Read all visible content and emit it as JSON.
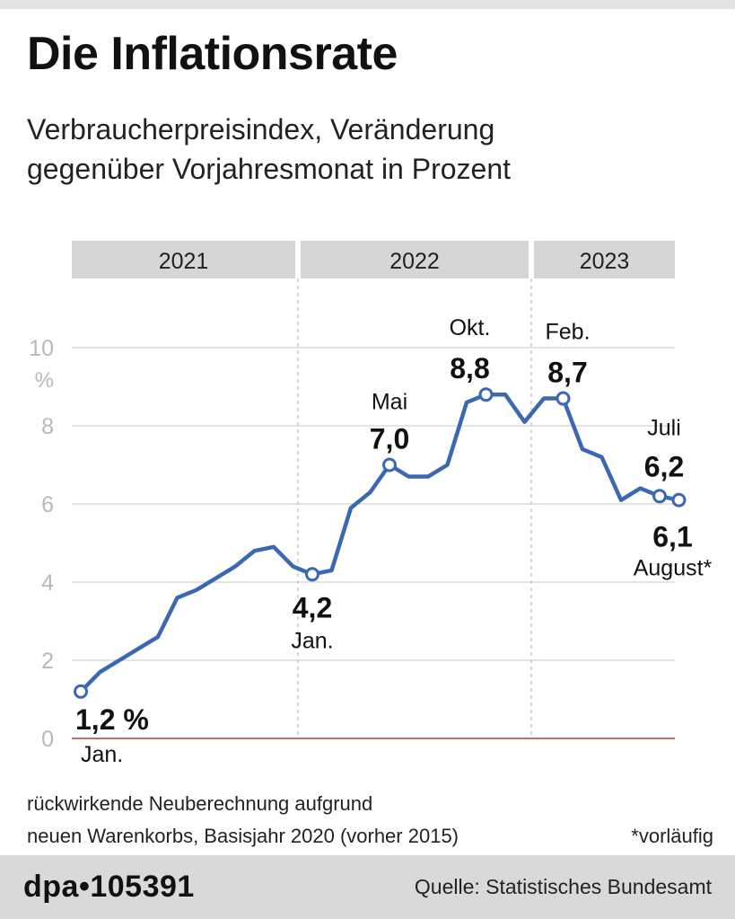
{
  "title": "Die Inflationsrate",
  "subtitle": [
    "Verbraucherpreisindex, Veränderung",
    "gegenüber Vorjahresmonat in Prozent"
  ],
  "footnote": [
    "rückwirkende Neuberechnung aufgrund",
    "neuen Warenkorbs, Basisjahr 2020 (vorher 2015)"
  ],
  "preliminary_note": "*vorläufig",
  "footer": {
    "logo": "dpa•105391",
    "source": "Quelle: Statistisches Bundesamt"
  },
  "colors": {
    "line": "#3c68b3",
    "grid": "#c8c8c8",
    "zero_line": "#b04040",
    "year_band": "#d6d6d6",
    "axis_text": "#b8b8b8",
    "label_text": "#111111"
  },
  "chart_data": {
    "type": "line",
    "title": "Die Inflationsrate",
    "subtitle": "Verbraucherpreisindex, Veränderung gegenüber Vorjahresmonat in Prozent",
    "ylabel": "%",
    "ylim": [
      0,
      10
    ],
    "yticks": [
      0,
      2,
      4,
      6,
      8,
      10
    ],
    "years": [
      "2021",
      "2022",
      "2023"
    ],
    "months_count": 32,
    "grid": "horizontal",
    "series": [
      {
        "values": [
          1.2,
          1.7,
          2.0,
          2.3,
          2.6,
          3.6,
          3.8,
          4.1,
          4.4,
          4.8,
          4.9,
          4.4,
          4.2,
          4.3,
          5.9,
          6.3,
          7.0,
          6.7,
          6.7,
          7.0,
          8.6,
          8.8,
          8.8,
          8.1,
          8.7,
          8.7,
          7.4,
          7.2,
          6.1,
          6.4,
          6.2,
          6.1
        ]
      }
    ],
    "annotations": [
      {
        "index": 0,
        "value": "1,2 %",
        "label": "Jan."
      },
      {
        "index": 12,
        "value": "4,2",
        "label": "Jan."
      },
      {
        "index": 16,
        "value": "7,0",
        "label": "Mai"
      },
      {
        "index": 21,
        "value": "8,8",
        "label": "Okt."
      },
      {
        "index": 25,
        "value": "8,7",
        "label": "Feb."
      },
      {
        "index": 30,
        "value": "6,2",
        "label": "Juli"
      },
      {
        "index": 31,
        "value": "6,1",
        "label": "August*"
      }
    ]
  }
}
